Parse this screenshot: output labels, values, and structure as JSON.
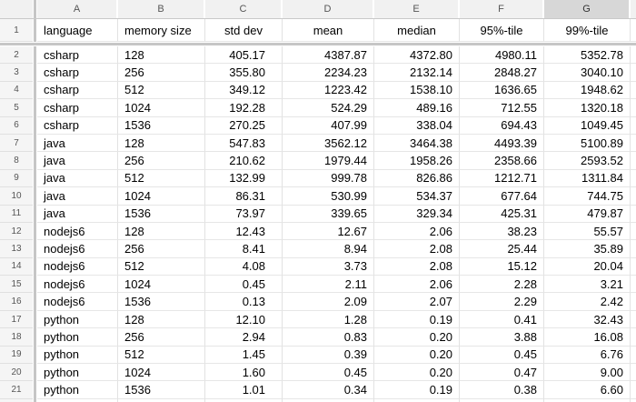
{
  "colors": {
    "header_bg": "#f1f1f1",
    "selected_header_bg": "#d7d7d7",
    "grid_line": "#e2e2e2",
    "frozen_divider": "#c6c6c6",
    "header_text": "#555555",
    "cell_text": "#000000"
  },
  "sheet": {
    "column_letters": [
      "A",
      "B",
      "C",
      "D",
      "E",
      "F",
      "G"
    ],
    "selected_column": "G",
    "header_row": {
      "row_number": "1",
      "cells": [
        "language",
        "memory size",
        "std dev",
        "mean",
        "median",
        "95%-tile",
        "99%-tile"
      ]
    },
    "rows": [
      {
        "row_number": "2",
        "cells": [
          "csharp",
          "128",
          "405.17",
          "4387.87",
          "4372.80",
          "4980.11",
          "5352.78"
        ]
      },
      {
        "row_number": "3",
        "cells": [
          "csharp",
          "256",
          "355.80",
          "2234.23",
          "2132.14",
          "2848.27",
          "3040.10"
        ]
      },
      {
        "row_number": "4",
        "cells": [
          "csharp",
          "512",
          "349.12",
          "1223.42",
          "1538.10",
          "1636.65",
          "1948.62"
        ]
      },
      {
        "row_number": "5",
        "cells": [
          "csharp",
          "1024",
          "192.28",
          "524.29",
          "489.16",
          "712.55",
          "1320.18"
        ]
      },
      {
        "row_number": "6",
        "cells": [
          "csharp",
          "1536",
          "270.25",
          "407.99",
          "338.04",
          "694.43",
          "1049.45"
        ]
      },
      {
        "row_number": "7",
        "cells": [
          "java",
          "128",
          "547.83",
          "3562.12",
          "3464.38",
          "4493.39",
          "5100.89"
        ]
      },
      {
        "row_number": "8",
        "cells": [
          "java",
          "256",
          "210.62",
          "1979.44",
          "1958.26",
          "2358.66",
          "2593.52"
        ]
      },
      {
        "row_number": "9",
        "cells": [
          "java",
          "512",
          "132.99",
          "999.78",
          "826.86",
          "1212.71",
          "1311.84"
        ]
      },
      {
        "row_number": "10",
        "cells": [
          "java",
          "1024",
          "86.31",
          "530.99",
          "534.37",
          "677.64",
          "744.75"
        ]
      },
      {
        "row_number": "11",
        "cells": [
          "java",
          "1536",
          "73.97",
          "339.65",
          "329.34",
          "425.31",
          "479.87"
        ]
      },
      {
        "row_number": "12",
        "cells": [
          "nodejs6",
          "128",
          "12.43",
          "12.67",
          "2.06",
          "38.23",
          "55.57"
        ]
      },
      {
        "row_number": "13",
        "cells": [
          "nodejs6",
          "256",
          "8.41",
          "8.94",
          "2.08",
          "25.44",
          "35.89"
        ]
      },
      {
        "row_number": "14",
        "cells": [
          "nodejs6",
          "512",
          "4.08",
          "3.73",
          "2.08",
          "15.12",
          "20.04"
        ]
      },
      {
        "row_number": "15",
        "cells": [
          "nodejs6",
          "1024",
          "0.45",
          "2.11",
          "2.06",
          "2.28",
          "3.21"
        ]
      },
      {
        "row_number": "16",
        "cells": [
          "nodejs6",
          "1536",
          "0.13",
          "2.09",
          "2.07",
          "2.29",
          "2.42"
        ]
      },
      {
        "row_number": "17",
        "cells": [
          "python",
          "128",
          "12.10",
          "1.28",
          "0.19",
          "0.41",
          "32.43"
        ]
      },
      {
        "row_number": "18",
        "cells": [
          "python",
          "256",
          "2.94",
          "0.83",
          "0.20",
          "3.88",
          "16.08"
        ]
      },
      {
        "row_number": "19",
        "cells": [
          "python",
          "512",
          "1.45",
          "0.39",
          "0.20",
          "0.45",
          "6.76"
        ]
      },
      {
        "row_number": "20",
        "cells": [
          "python",
          "1024",
          "1.60",
          "0.45",
          "0.20",
          "0.47",
          "9.00"
        ]
      },
      {
        "row_number": "21",
        "cells": [
          "python",
          "1536",
          "1.01",
          "0.34",
          "0.19",
          "0.38",
          "6.60"
        ]
      }
    ]
  }
}
